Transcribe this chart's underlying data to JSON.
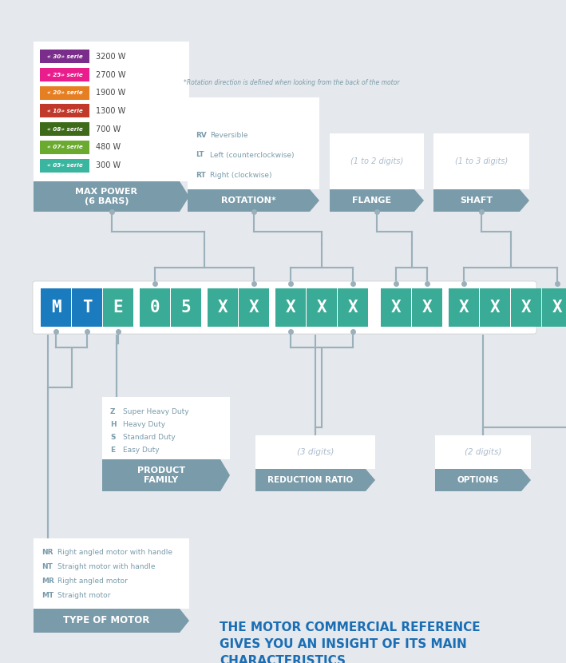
{
  "bg_color": "#e5e8ec",
  "title_text": "THE MOTOR COMMERCIAL REFERENCE\nGIVES YOU AN INSIGHT OF ITS MAIN\nCHARACTERISTICS",
  "title_color": "#1a6eb5",
  "header_color": "#7a9baa",
  "box_bg": "#ffffff",
  "line_color": "#9ab0bb",
  "blue_letter": "#1a7bbf",
  "teal_letter": "#3aab96",
  "text_color": "#7a9baa",
  "power_series": [
    {
      "label": "« 05» serie",
      "power": "300 W",
      "color": "#3ab5a0"
    },
    {
      "label": "« 07» serie",
      "power": "480 W",
      "color": "#6aaa2e"
    },
    {
      "label": "« 08» serie",
      "power": "700 W",
      "color": "#3d6b1a"
    },
    {
      "label": "« 10» serie",
      "power": "1300 W",
      "color": "#c0392b"
    },
    {
      "label": "« 20» serie",
      "power": "1900 W",
      "color": "#e67e22"
    },
    {
      "label": "« 25» serie",
      "power": "2700 W",
      "color": "#e91e8c"
    },
    {
      "label": "« 30» serie",
      "power": "3200 W",
      "color": "#7b2d8b"
    }
  ]
}
